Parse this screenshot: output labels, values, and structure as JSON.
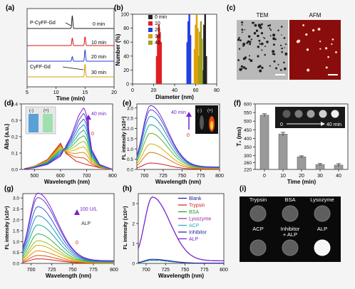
{
  "panels": {
    "a": {
      "letter": "(a)",
      "trace_labels": [
        "0 min",
        "10 min",
        "20 min",
        "30 min"
      ],
      "trace_colors": [
        "#222222",
        "#d01818",
        "#2040d0",
        "#d0a000"
      ],
      "top_label": "P-CyFF-Gd",
      "bottom_label": "CyFF-Gd",
      "xlabel": "Time (min)",
      "xticks": [
        "5",
        "10",
        "15",
        "20"
      ]
    },
    "b": {
      "letter": "(b)",
      "ylabel": "Number (%)",
      "xlabel": "Diameter (nm)",
      "xticks": [
        "0",
        "20",
        "40",
        "60",
        "80"
      ],
      "yticks": [
        "0",
        "20",
        "40",
        "60",
        "80",
        "100"
      ],
      "legend": [
        "0 min",
        "10",
        "20",
        "30",
        "40"
      ]
    },
    "c": {
      "letter": "(c)",
      "tem_label": "TEM",
      "afm_label": "AFM"
    },
    "d": {
      "letter": "(d)",
      "ylabel": "Abs (a.u.)",
      "xlabel": "Wavelength (nm)",
      "xticks": [
        "500",
        "600",
        "700",
        "800"
      ],
      "yticks": [
        "0.0",
        "0.1",
        "0.2",
        "0.3",
        "0.4"
      ],
      "inset_minus": "(-)",
      "inset_plus": "(+)",
      "arrow_top": "40 min",
      "arrow_bottom": "0"
    },
    "e": {
      "letter": "(e)",
      "ylabel": "FL intensity (x10⁴)",
      "xlabel": "Wavelength (nm)",
      "xticks": [
        "700",
        "725",
        "750",
        "775",
        "800"
      ],
      "yticks": [
        "0.0",
        "0.5",
        "1.0",
        "1.5",
        "2.0",
        "2.5",
        "3.0"
      ],
      "arrow_top": "40 min",
      "arrow_bottom": "0",
      "inset_minus": "(-)",
      "inset_plus": "(+)"
    },
    "f": {
      "letter": "(f)",
      "ylabel": "T₁ (ms)",
      "xlabel": "Time (min)",
      "xticks": [
        "0",
        "10",
        "20",
        "30",
        "40"
      ],
      "yticks": [
        "220",
        "260",
        "300",
        "350",
        "400",
        "450",
        "500",
        "550",
        "600"
      ],
      "inset_start": "0",
      "inset_end": "40 min"
    },
    "g": {
      "letter": "(g)",
      "ylabel": "FL intensity (x10⁴)",
      "xlabel": "Wavelength (nm)",
      "xticks": [
        "700",
        "725",
        "750",
        "775",
        "800"
      ],
      "yticks": [
        "0.0",
        "0.5",
        "1.0",
        "1.5",
        "2.0",
        "2.5",
        "3.0"
      ],
      "arrow_top": "100 U/L",
      "arrow_mid": "ALP",
      "arrow_bottom": "0"
    },
    "h": {
      "letter": "(h)",
      "ylabel": "FL intensity (x10⁴)",
      "xlabel": "Wavelength (nm)",
      "xticks": [
        "700",
        "725",
        "750",
        "775",
        "800"
      ],
      "yticks": [
        "0",
        "1",
        "2",
        "3"
      ],
      "legend": [
        "Blank",
        "Trypsin",
        "BSA",
        "Lysozyme",
        "ACP",
        "Inhibitor",
        "ALP"
      ],
      "legend_colors": [
        "#1a1aa0",
        "#d02020",
        "#20a020",
        "#a020a0",
        "#20b0c0",
        "#1a1aa0",
        "#7a20d0"
      ]
    },
    "i": {
      "letter": "(i)",
      "wells": [
        {
          "label": "Trypsin",
          "bright": false
        },
        {
          "label": "BSA",
          "bright": false
        },
        {
          "label": "Lysozyme",
          "bright": false
        },
        {
          "label": "ACP",
          "bright": false
        },
        {
          "label": "Inhibitor\n+ ALP",
          "bright": false
        },
        {
          "label": "ALP",
          "bright": true
        }
      ]
    }
  },
  "chart_data": [
    {
      "panel": "a",
      "type": "line",
      "title": "",
      "xlabel": "Time (min)",
      "ylabel": "",
      "xlim": [
        5,
        20
      ],
      "series": [
        {
          "name": "0 min",
          "peaks": [
            {
              "x": 12.8,
              "height": 1.0
            }
          ]
        },
        {
          "name": "10 min",
          "peaks": [
            {
              "x": 12.8,
              "height": 0.6
            },
            {
              "x": 15.0,
              "height": 0.7
            }
          ]
        },
        {
          "name": "20 min",
          "peaks": [
            {
              "x": 12.8,
              "height": 0.35
            },
            {
              "x": 15.0,
              "height": 0.9
            }
          ]
        },
        {
          "name": "30 min",
          "peaks": [
            {
              "x": 15.0,
              "height": 1.0
            }
          ]
        }
      ]
    },
    {
      "panel": "b",
      "type": "bar",
      "title": "",
      "xlabel": "Diameter (nm)",
      "ylabel": "Number (%)",
      "xlim": [
        0,
        80
      ],
      "ylim": [
        0,
        100
      ],
      "series": [
        {
          "name": "0 min",
          "x": [
            67,
            68,
            69,
            70
          ],
          "values": [
            20,
            85,
            100,
            40
          ]
        },
        {
          "name": "10",
          "x": [
            23,
            24,
            25,
            26,
            27
          ],
          "values": [
            40,
            70,
            85,
            75,
            60
          ]
        },
        {
          "name": "20",
          "x": [
            52,
            53,
            54,
            55
          ],
          "values": [
            60,
            90,
            100,
            70
          ]
        },
        {
          "name": "30",
          "x": [
            59,
            60,
            61,
            62
          ],
          "values": [
            50,
            85,
            100,
            80
          ]
        },
        {
          "name": "40",
          "x": [
            63,
            64,
            65,
            66
          ],
          "values": [
            40,
            75,
            90,
            65
          ]
        }
      ]
    },
    {
      "panel": "d",
      "type": "line",
      "xlabel": "Wavelength (nm)",
      "ylabel": "Abs (a.u.)",
      "xlim": [
        450,
        800
      ],
      "ylim": [
        0,
        0.4
      ],
      "series": [
        {
          "name": "0",
          "x": [
            450,
            500,
            550,
            580,
            600,
            620,
            660,
            700,
            750,
            800
          ],
          "values": [
            0.0,
            0.02,
            0.06,
            0.12,
            0.16,
            0.1,
            0.05,
            0.03,
            0.01,
            0.0
          ]
        },
        {
          "name": "40 min",
          "x": [
            450,
            500,
            550,
            600,
            640,
            670,
            690,
            700,
            720,
            750,
            800
          ],
          "values": [
            0.0,
            0.01,
            0.03,
            0.08,
            0.2,
            0.33,
            0.38,
            0.33,
            0.12,
            0.03,
            0.0
          ]
        }
      ]
    },
    {
      "panel": "e",
      "type": "line",
      "xlabel": "Wavelength (nm)",
      "ylabel": "FL intensity (x10⁴)",
      "xlim": [
        690,
        800
      ],
      "ylim": [
        0,
        3.2
      ],
      "series_peak_values": [
        0.3,
        0.8,
        1.2,
        1.7,
        2.1,
        2.5,
        2.8,
        3.0
      ]
    },
    {
      "panel": "f",
      "type": "bar",
      "xlabel": "Time (min)",
      "ylabel": "T₁ (ms)",
      "categories": [
        "0",
        "10",
        "20",
        "30",
        "40"
      ],
      "values": [
        535,
        425,
        293,
        248,
        245
      ],
      "errors": [
        8,
        10,
        6,
        6,
        8
      ],
      "ylim": [
        220,
        600
      ]
    },
    {
      "panel": "g",
      "type": "line",
      "xlabel": "Wavelength (nm)",
      "ylabel": "FL intensity (x10⁴)",
      "xlim": [
        690,
        800
      ],
      "ylim": [
        0,
        3.2
      ],
      "series_peak_values": [
        0.2,
        0.35,
        0.55,
        0.8,
        1.0,
        1.3,
        1.7,
        2.1,
        2.5,
        2.9,
        3.1
      ]
    },
    {
      "panel": "h",
      "type": "line",
      "xlabel": "Wavelength (nm)",
      "ylabel": "FL intensity (x10⁴)",
      "xlim": [
        690,
        800
      ],
      "ylim": [
        0,
        3.5
      ],
      "series": [
        {
          "name": "Blank",
          "peak": 0.15
        },
        {
          "name": "Trypsin",
          "peak": 0.15
        },
        {
          "name": "BSA",
          "peak": 0.15
        },
        {
          "name": "Lysozyme",
          "peak": 0.15
        },
        {
          "name": "ACP",
          "peak": 0.15
        },
        {
          "name": "Inhibitor",
          "peak": 0.2
        },
        {
          "name": "ALP",
          "peak": 3.2
        }
      ]
    }
  ]
}
